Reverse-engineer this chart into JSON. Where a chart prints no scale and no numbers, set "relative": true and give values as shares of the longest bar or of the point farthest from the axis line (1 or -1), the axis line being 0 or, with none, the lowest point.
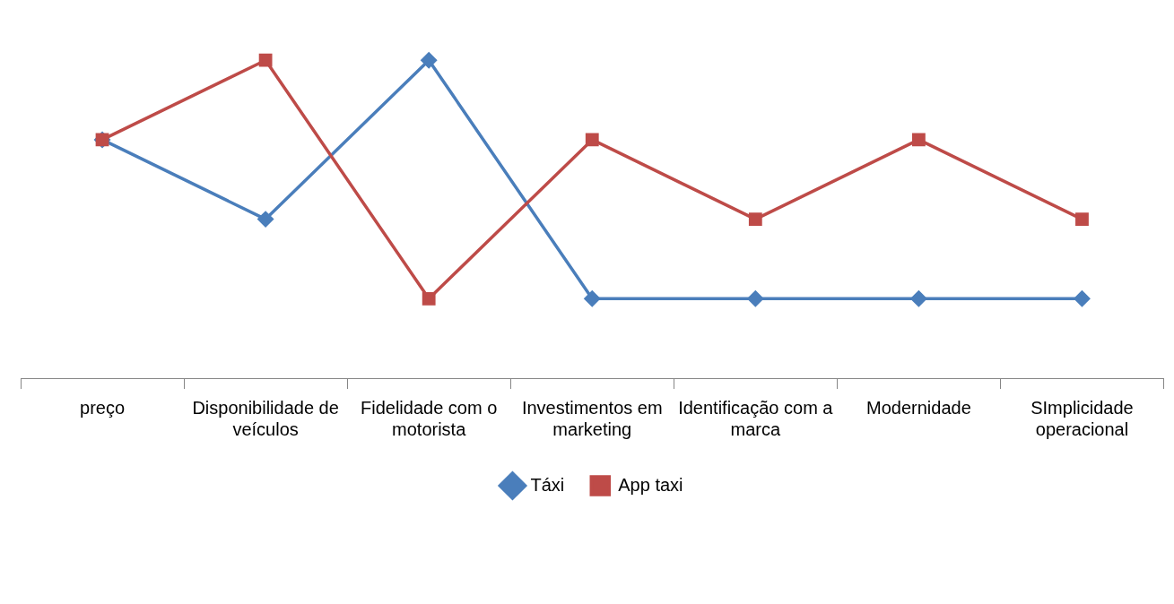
{
  "chart_data": {
    "type": "line",
    "relative": true,
    "categories": [
      "preço",
      "Disponibilidade de veículos",
      "Fidelidade com o motorista",
      "Investimentos em marketing",
      "Identificação com a marca",
      "Modernidade",
      "SImplicidade operacional"
    ],
    "series": [
      {
        "name": "Táxi",
        "color": "#4a7ebb",
        "marker": "diamond",
        "values": [
          0.75,
          0.5,
          1,
          0.25,
          0.25,
          0.25,
          0.25
        ]
      },
      {
        "name": "App taxi",
        "color": "#be4b48",
        "marker": "square",
        "values": [
          0.75,
          1,
          0.25,
          0.75,
          0.5,
          0.75,
          0.5
        ]
      }
    ],
    "legend": "bottom",
    "grid": false,
    "line_style": "solid"
  }
}
